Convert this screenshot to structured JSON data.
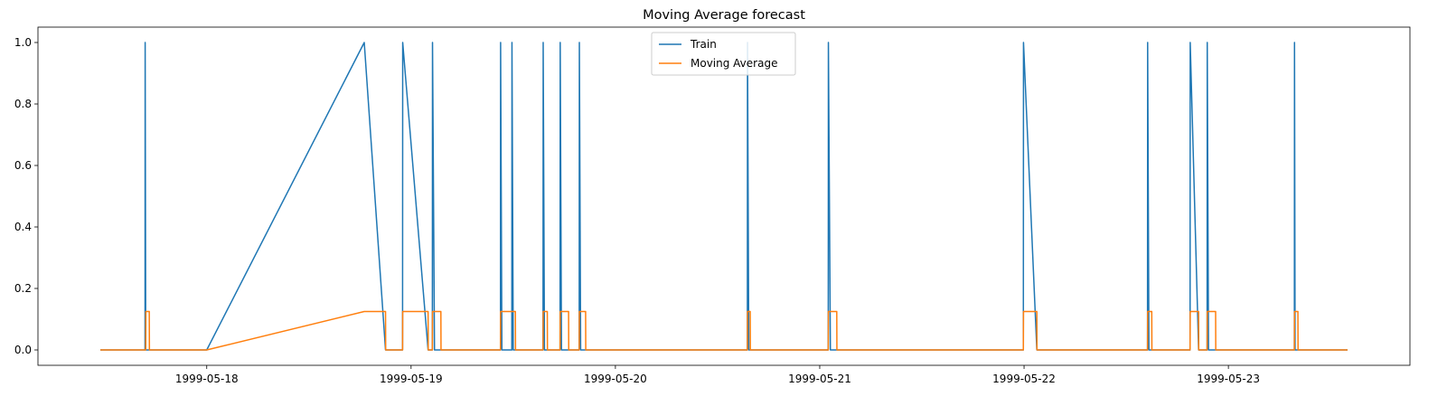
{
  "chart_data": {
    "type": "line",
    "title": "Moving Average forecast",
    "xlabel": "",
    "ylabel": "",
    "grid": false,
    "legend_placement": "top-center",
    "x_axis": {
      "kind": "time",
      "start": "1999-05-17 11:30",
      "end": "1999-05-23 14:00",
      "ticks": [
        "1999-05-18",
        "1999-05-19",
        "1999-05-20",
        "1999-05-21",
        "1999-05-22",
        "1999-05-23"
      ]
    },
    "y_axis": {
      "range": [
        -0.05,
        1.05
      ],
      "ticks": [
        "0.0",
        "0.2",
        "0.4",
        "0.6",
        "0.8",
        "1.0"
      ]
    },
    "series": [
      {
        "name": "Train",
        "color": "#1f77b4",
        "points": [
          [
            "1999-05-17 11:30",
            0
          ],
          [
            "1999-05-17 16:45",
            0
          ],
          [
            "1999-05-17 16:46",
            1
          ],
          [
            "1999-05-17 16:50",
            0
          ],
          [
            "1999-05-18 00:00",
            0
          ],
          [
            "1999-05-18 18:30",
            1
          ],
          [
            "1999-05-18 21:00",
            0
          ],
          [
            "1999-05-18 23:00",
            0
          ],
          [
            "1999-05-18 23:01",
            1
          ],
          [
            "1999-05-19 02:00",
            0
          ],
          [
            "1999-05-19 02:30",
            0
          ],
          [
            "1999-05-19 02:31",
            1
          ],
          [
            "1999-05-19 02:45",
            0
          ],
          [
            "1999-05-19 10:30",
            0
          ],
          [
            "1999-05-19 10:31",
            1
          ],
          [
            "1999-05-19 10:40",
            0
          ],
          [
            "1999-05-19 11:50",
            0
          ],
          [
            "1999-05-19 11:51",
            1
          ],
          [
            "1999-05-19 12:00",
            0
          ],
          [
            "1999-05-19 15:30",
            0
          ],
          [
            "1999-05-19 15:31",
            1
          ],
          [
            "1999-05-19 15:40",
            0
          ],
          [
            "1999-05-19 17:30",
            0
          ],
          [
            "1999-05-19 17:31",
            1
          ],
          [
            "1999-05-19 17:40",
            0
          ],
          [
            "1999-05-19 19:45",
            0
          ],
          [
            "1999-05-19 19:46",
            1
          ],
          [
            "1999-05-19 19:55",
            0
          ],
          [
            "1999-05-20 15:30",
            0
          ],
          [
            "1999-05-20 15:31",
            1
          ],
          [
            "1999-05-20 15:40",
            0
          ],
          [
            "1999-05-21 01:00",
            0
          ],
          [
            "1999-05-21 01:01",
            1
          ],
          [
            "1999-05-21 01:15",
            0
          ],
          [
            "1999-05-21 23:55",
            0
          ],
          [
            "1999-05-21 23:56",
            1
          ],
          [
            "1999-05-22 01:30",
            0
          ],
          [
            "1999-05-22 14:30",
            0
          ],
          [
            "1999-05-22 14:31",
            1
          ],
          [
            "1999-05-22 14:40",
            0
          ],
          [
            "1999-05-22 19:30",
            0
          ],
          [
            "1999-05-22 19:31",
            1
          ],
          [
            "1999-05-22 20:30",
            0
          ],
          [
            "1999-05-22 21:30",
            0
          ],
          [
            "1999-05-22 21:31",
            1
          ],
          [
            "1999-05-22 21:40",
            0
          ],
          [
            "1999-05-23 07:45",
            0
          ],
          [
            "1999-05-23 07:46",
            1
          ],
          [
            "1999-05-23 07:50",
            0
          ],
          [
            "1999-05-23 14:00",
            0
          ]
        ]
      },
      {
        "name": "Moving Average",
        "color": "#ff7f0e",
        "points": [
          [
            "1999-05-17 11:30",
            0
          ],
          [
            "1999-05-17 16:50",
            0
          ],
          [
            "1999-05-17 16:51",
            0.125
          ],
          [
            "1999-05-17 17:15",
            0.125
          ],
          [
            "1999-05-17 17:16",
            0
          ],
          [
            "1999-05-18 00:00",
            0
          ],
          [
            "1999-05-18 18:30",
            0.125
          ],
          [
            "1999-05-18 21:00",
            0.125
          ],
          [
            "1999-05-18 21:01",
            0
          ],
          [
            "1999-05-18 23:00",
            0
          ],
          [
            "1999-05-18 23:01",
            0.125
          ],
          [
            "1999-05-19 02:00",
            0.125
          ],
          [
            "1999-05-19 02:01",
            0
          ],
          [
            "1999-05-19 02:30",
            0
          ],
          [
            "1999-05-19 02:31",
            0.125
          ],
          [
            "1999-05-19 03:30",
            0.125
          ],
          [
            "1999-05-19 03:31",
            0
          ],
          [
            "1999-05-19 10:30",
            0
          ],
          [
            "1999-05-19 10:31",
            0.125
          ],
          [
            "1999-05-19 12:15",
            0.125
          ],
          [
            "1999-05-19 12:16",
            0
          ],
          [
            "1999-05-19 15:30",
            0
          ],
          [
            "1999-05-19 15:31",
            0.125
          ],
          [
            "1999-05-19 16:00",
            0.125
          ],
          [
            "1999-05-19 16:01",
            0
          ],
          [
            "1999-05-19 17:30",
            0
          ],
          [
            "1999-05-19 17:31",
            0.125
          ],
          [
            "1999-05-19 18:30",
            0.125
          ],
          [
            "1999-05-19 18:31",
            0
          ],
          [
            "1999-05-19 19:45",
            0
          ],
          [
            "1999-05-19 19:46",
            0.125
          ],
          [
            "1999-05-19 20:30",
            0.125
          ],
          [
            "1999-05-19 20:31",
            0
          ],
          [
            "1999-05-20 15:30",
            0
          ],
          [
            "1999-05-20 15:31",
            0.125
          ],
          [
            "1999-05-20 15:50",
            0.125
          ],
          [
            "1999-05-20 15:51",
            0
          ],
          [
            "1999-05-21 01:00",
            0
          ],
          [
            "1999-05-21 01:01",
            0.125
          ],
          [
            "1999-05-21 02:00",
            0.125
          ],
          [
            "1999-05-21 02:01",
            0
          ],
          [
            "1999-05-21 23:55",
            0
          ],
          [
            "1999-05-21 23:56",
            0.125
          ],
          [
            "1999-05-22 01:30",
            0.125
          ],
          [
            "1999-05-22 01:31",
            0
          ],
          [
            "1999-05-22 14:30",
            0
          ],
          [
            "1999-05-22 14:31",
            0.125
          ],
          [
            "1999-05-22 15:00",
            0.125
          ],
          [
            "1999-05-22 15:01",
            0
          ],
          [
            "1999-05-22 19:30",
            0
          ],
          [
            "1999-05-22 19:31",
            0.125
          ],
          [
            "1999-05-22 20:30",
            0.125
          ],
          [
            "1999-05-22 20:31",
            0
          ],
          [
            "1999-05-22 21:30",
            0
          ],
          [
            "1999-05-22 21:31",
            0.125
          ],
          [
            "1999-05-22 22:30",
            0.125
          ],
          [
            "1999-05-22 22:31",
            0
          ],
          [
            "1999-05-23 07:45",
            0
          ],
          [
            "1999-05-23 07:46",
            0.125
          ],
          [
            "1999-05-23 08:10",
            0.125
          ],
          [
            "1999-05-23 08:11",
            0
          ],
          [
            "1999-05-23 14:00",
            0
          ]
        ]
      }
    ]
  }
}
